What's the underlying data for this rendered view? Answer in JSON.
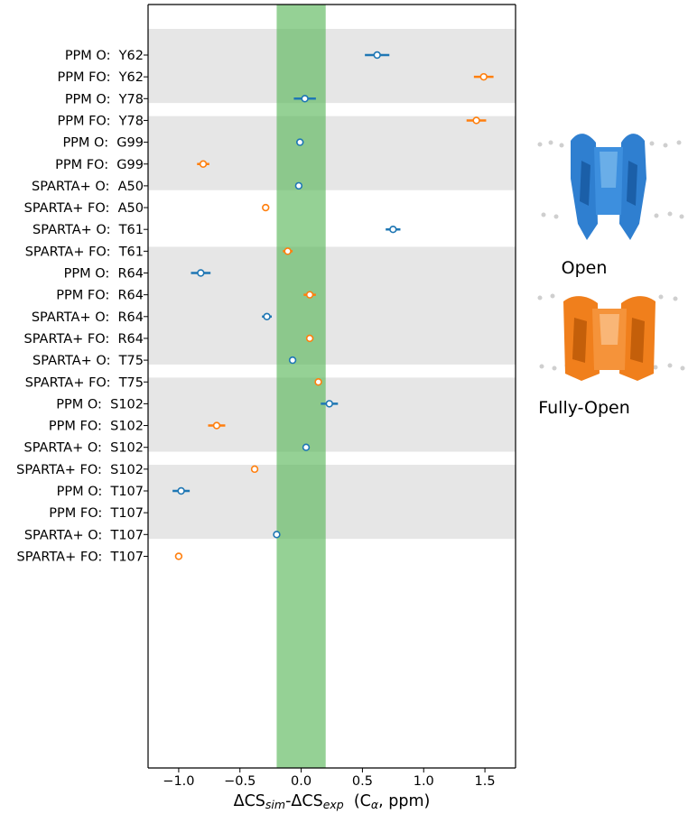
{
  "chart_data": {
    "type": "scatter",
    "title": "",
    "xlabel": "ΔCS",
    "xlabel_sub1": "sim",
    "xlabel_mid": "-ΔCS",
    "xlabel_sub2": "exp",
    "xlabel_tail": "  (C",
    "xlabel_alpha": "α",
    "xlabel_end": ", ppm)",
    "xlim": [
      -1.25,
      1.75
    ],
    "xticks": [
      -1.0,
      -0.5,
      0.0,
      0.5,
      1.0,
      1.5
    ],
    "xtick_labels": [
      "−1.0",
      "−0.5",
      "0.0",
      "0.5",
      "1.0",
      "1.5"
    ],
    "tolerance_band": [
      -0.2,
      0.2
    ],
    "tolerance_color": "#5cb85c",
    "shade_color": "#e6e6e6",
    "colors": {
      "O": "#1f77b4",
      "FO": "#ff7f0e"
    },
    "shaded_rows": [
      [
        0,
        1
      ],
      [
        4,
        5
      ],
      [
        10,
        11
      ],
      [
        12,
        13
      ],
      [
        16,
        17
      ],
      [
        20,
        21
      ]
    ],
    "rows": [
      {
        "label": "PPM O:  Y62",
        "state": "O",
        "value": 0.62,
        "err": 0.1
      },
      {
        "label": "PPM FO:  Y62",
        "state": "FO",
        "value": 1.49,
        "err": 0.08
      },
      {
        "label": "PPM O:  Y78",
        "state": "O",
        "value": 0.03,
        "err": 0.09
      },
      {
        "label": "PPM FO:  Y78",
        "state": "FO",
        "value": 1.43,
        "err": 0.08
      },
      {
        "label": "PPM O:  G99",
        "state": "O",
        "value": -0.01,
        "err": 0.03
      },
      {
        "label": "PPM FO:  G99",
        "state": "FO",
        "value": -0.8,
        "err": 0.05
      },
      {
        "label": "SPARTA+ O:  A50",
        "state": "O",
        "value": -0.02,
        "err": 0.0
      },
      {
        "label": "SPARTA+ FO:  A50",
        "state": "FO",
        "value": -0.29,
        "err": 0.0
      },
      {
        "label": "SPARTA+ O:  T61",
        "state": "O",
        "value": 0.75,
        "err": 0.06
      },
      {
        "label": "SPARTA+ FO:  T61",
        "state": "FO",
        "value": -0.11,
        "err": 0.04
      },
      {
        "label": "PPM O:  R64",
        "state": "O",
        "value": -0.82,
        "err": 0.08
      },
      {
        "label": "PPM FO:  R64",
        "state": "FO",
        "value": 0.07,
        "err": 0.05
      },
      {
        "label": "SPARTA+ O:  R64",
        "state": "O",
        "value": -0.28,
        "err": 0.04
      },
      {
        "label": "SPARTA+ FO:  R64",
        "state": "FO",
        "value": 0.07,
        "err": 0.03
      },
      {
        "label": "SPARTA+ O:  T75",
        "state": "O",
        "value": -0.07,
        "err": 0.0
      },
      {
        "label": "SPARTA+ FO:  T75",
        "state": "FO",
        "value": 0.14,
        "err": 0.0
      },
      {
        "label": "PPM O:  S102",
        "state": "O",
        "value": 0.23,
        "err": 0.07
      },
      {
        "label": "PPM FO:  S102",
        "state": "FO",
        "value": -0.69,
        "err": 0.07
      },
      {
        "label": "SPARTA+ O:  S102",
        "state": "O",
        "value": 0.04,
        "err": 0.0
      },
      {
        "label": "SPARTA+ FO:  S102",
        "state": "FO",
        "value": -0.38,
        "err": 0.0
      },
      {
        "label": "PPM O:  T107",
        "state": "O",
        "value": -0.98,
        "err": 0.07
      },
      {
        "label": "PPM FO:  T107",
        "state": "FO",
        "value": null,
        "err": null
      },
      {
        "label": "SPARTA+ O:  T107",
        "state": "O",
        "value": -0.2,
        "err": 0.0
      },
      {
        "label": "SPARTA+ FO:  T107",
        "state": "FO",
        "value": -1.0,
        "err": 0.0
      }
    ]
  },
  "legend_images": {
    "open_label": "Open",
    "fully_open_label": "Fully-Open"
  }
}
